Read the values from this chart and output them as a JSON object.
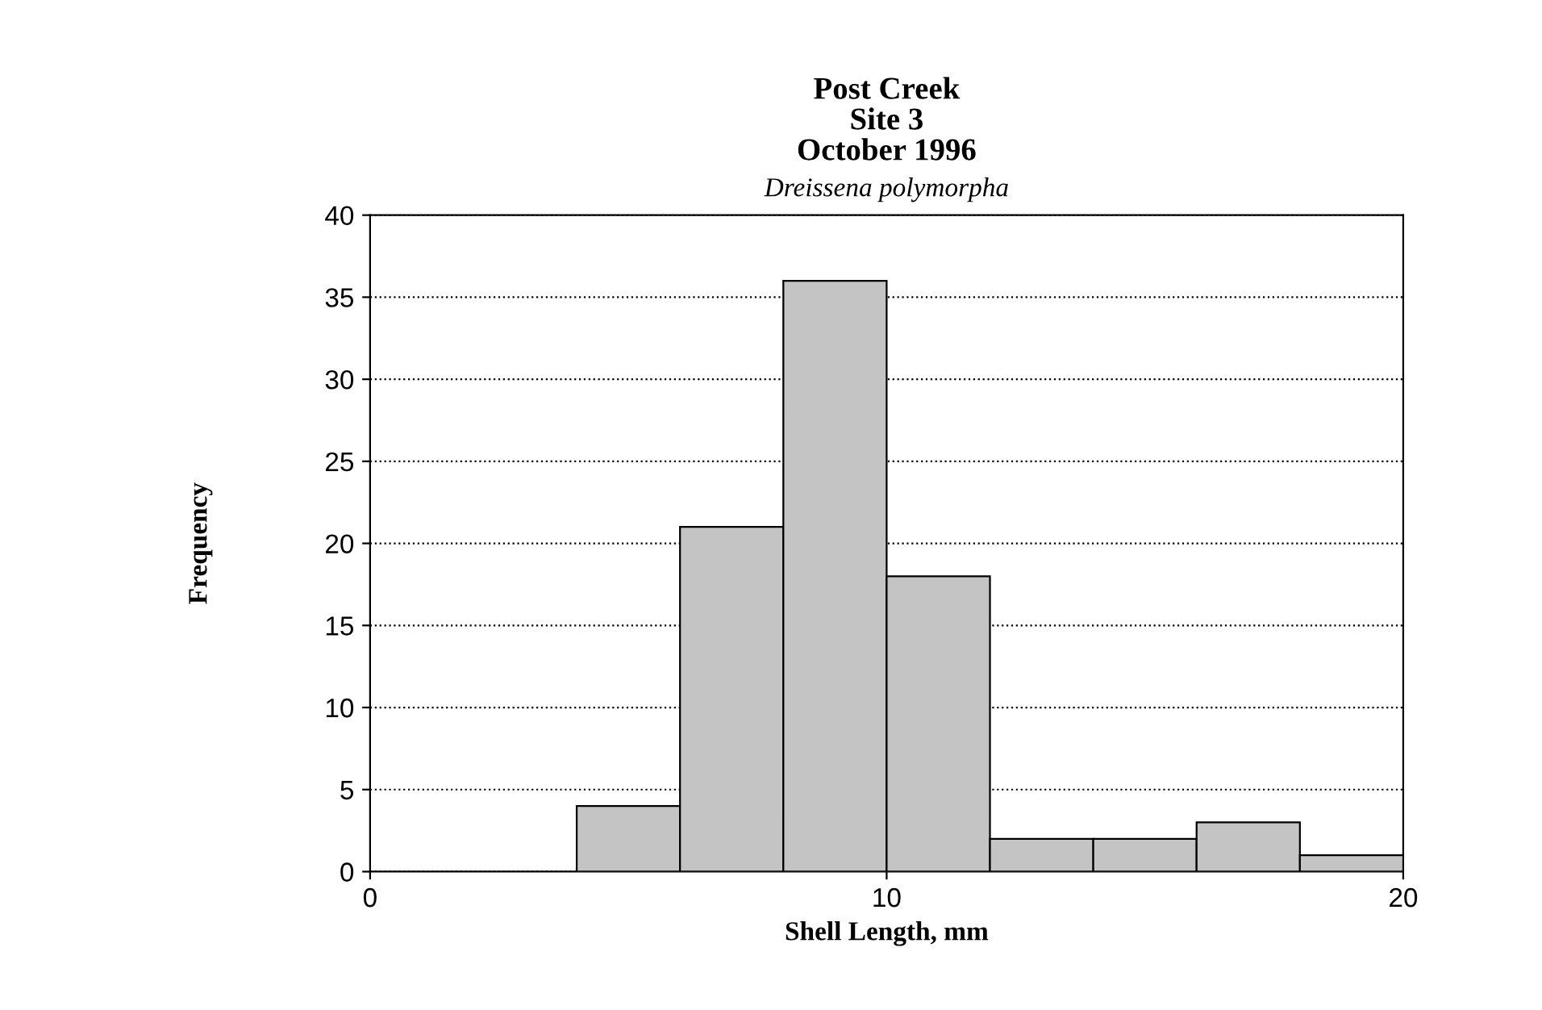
{
  "chart_data": {
    "type": "histogram",
    "title": "Post Creek\nSite 3\nOctober 1996",
    "subtitle": "Dreissena polymorpha",
    "xlabel": "Shell Length, mm",
    "ylabel": "Frequency",
    "bins": [
      4,
      6,
      8,
      10,
      12,
      14,
      16,
      18,
      20
    ],
    "values": [
      4,
      21,
      36,
      18,
      2,
      2,
      3,
      1
    ],
    "color": "#c4c4c4",
    "xlim": [
      0,
      20
    ],
    "xticks": [
      0,
      10,
      20
    ],
    "ylim": [
      0,
      40
    ],
    "yticks": [
      0,
      5,
      10,
      15,
      20,
      25,
      30,
      35,
      40
    ],
    "grid": "y"
  }
}
